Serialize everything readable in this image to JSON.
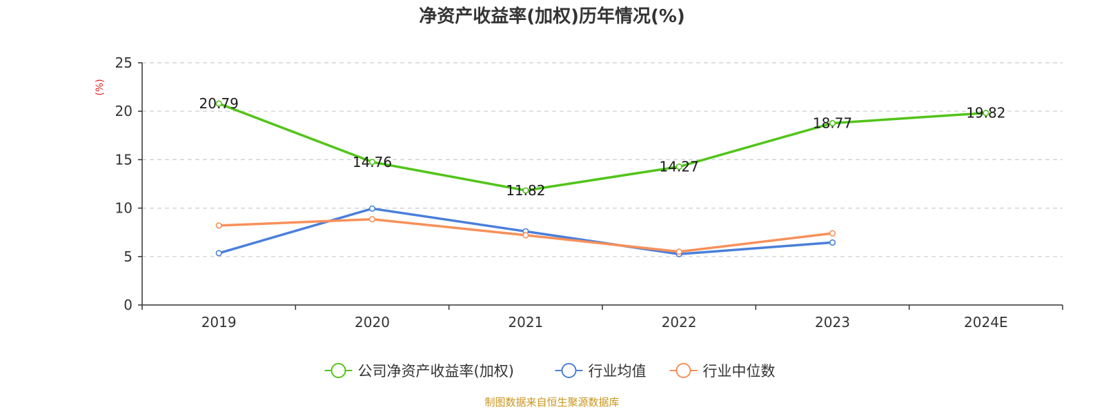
{
  "chart_data": {
    "type": "line",
    "title": "净资产收益率(加权)历年情况(%)",
    "ylabel": "(%)",
    "categories": [
      "2019",
      "2020",
      "2021",
      "2022",
      "2023",
      "2024E"
    ],
    "ylim": [
      0,
      25
    ],
    "yticks": [
      0,
      5,
      10,
      15,
      20,
      25
    ],
    "grid": true,
    "legend_position": "bottom",
    "series": [
      {
        "name": "公司净资产收益率(加权)",
        "color": "#52c41a",
        "values": [
          20.79,
          14.76,
          11.82,
          14.27,
          18.77,
          19.82
        ],
        "show_labels": true
      },
      {
        "name": "行业均值",
        "color": "#4a7fdb",
        "values": [
          5.35,
          9.95,
          7.6,
          5.25,
          6.45,
          null
        ],
        "show_labels": false
      },
      {
        "name": "行业中位数",
        "color": "#f7905a",
        "values": [
          8.2,
          8.85,
          7.2,
          5.5,
          7.4,
          null
        ],
        "show_labels": false
      }
    ]
  },
  "footer": {
    "source": "制图数据来自恒生聚源数据库",
    "source_color": "#c8961e"
  },
  "colors": {
    "ylabel": "#e02020",
    "axis": "#333333",
    "grid": "#cccccc"
  }
}
